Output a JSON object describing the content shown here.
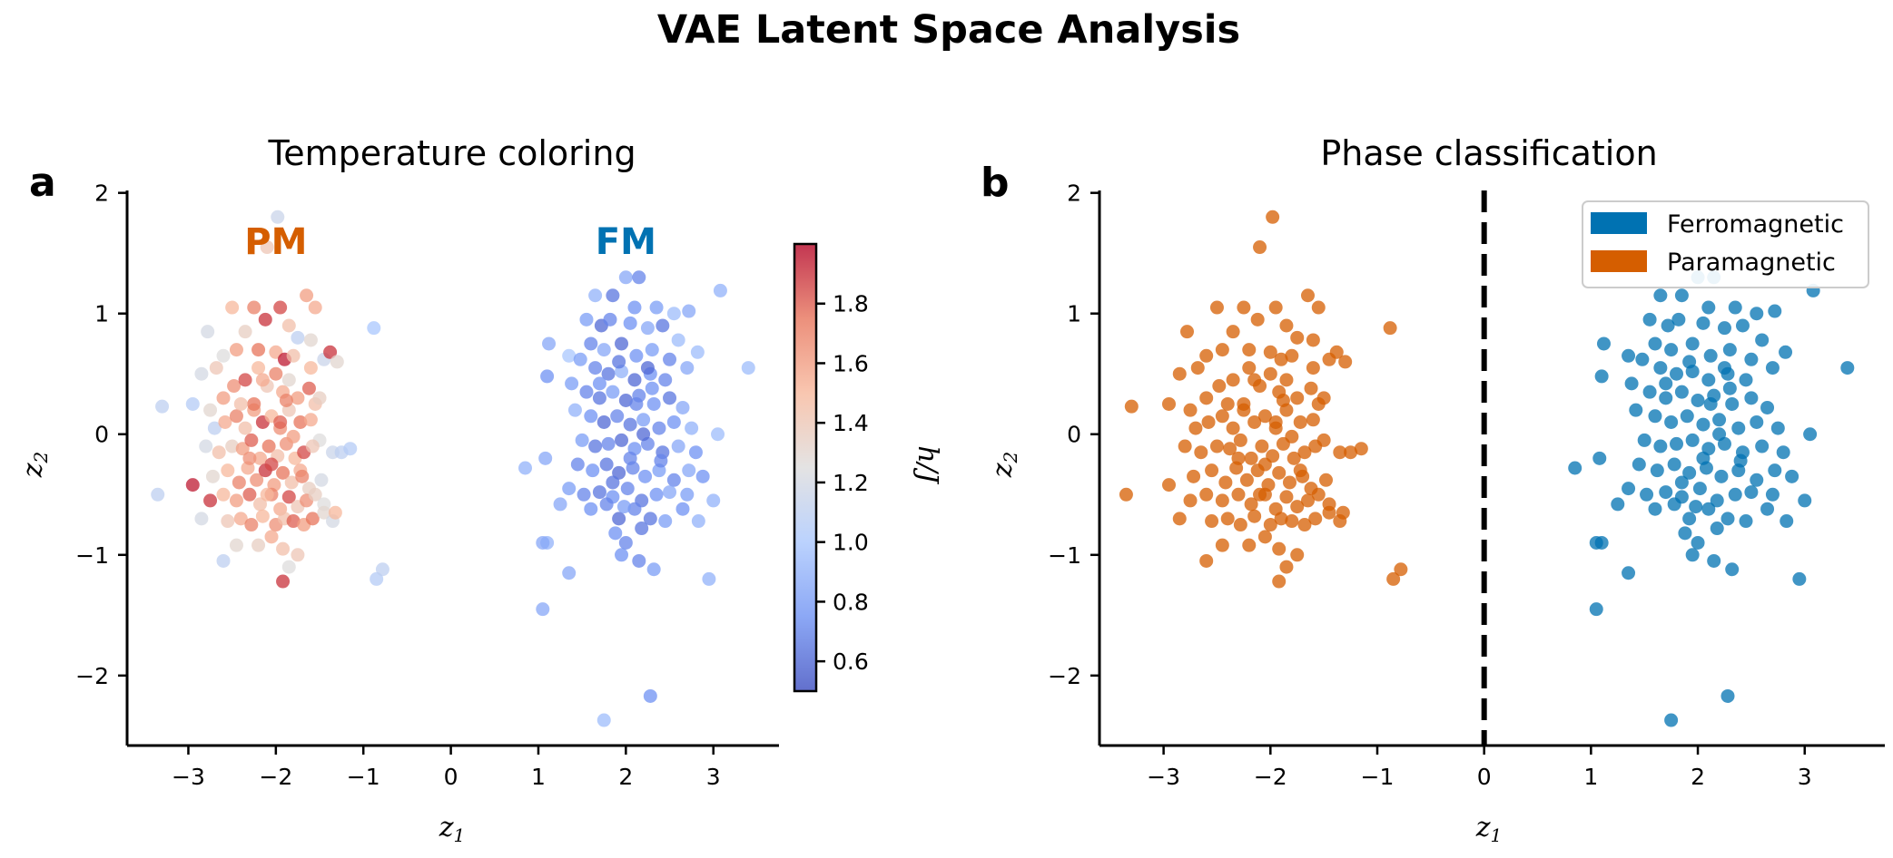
{
  "figure": {
    "title": "VAE Latent Space Analysis"
  },
  "colors": {
    "ferromagnetic": "#0072b2",
    "paramagnetic": "#d55e00",
    "colormap": [
      "#3b4cc0",
      "#6f92f3",
      "#aac7fd",
      "#dddcdc",
      "#f7b89c",
      "#e7745b",
      "#b40426"
    ]
  },
  "chart_data": [
    {
      "id": "a",
      "type": "scatter",
      "panel_label": "a",
      "title": "Temperature coloring",
      "xlabel_main": "z",
      "xlabel_sub": "1",
      "ylabel_main": "z",
      "ylabel_sub": "2",
      "xlim": [
        -3.7,
        3.75
      ],
      "ylim": [
        -2.58,
        2.02
      ],
      "xticks": [
        -3,
        -2,
        -1,
        0,
        1,
        2,
        3
      ],
      "yticks": [
        -2,
        -1,
        0,
        1,
        2
      ],
      "grid": false,
      "annotations": [
        {
          "text": "PM",
          "x": -2.0,
          "y": 1.6,
          "color": "#d55e00"
        },
        {
          "text": "FM",
          "x": 2.0,
          "y": 1.6,
          "color": "#0072b2"
        }
      ],
      "colorbar": {
        "label": "h/J",
        "range": [
          0.5,
          2.0
        ],
        "ticks": [
          0.6,
          0.8,
          1.0,
          1.2,
          1.4,
          1.6,
          1.8
        ]
      },
      "color_encoding": "h/J"
    },
    {
      "id": "b",
      "type": "scatter",
      "panel_label": "b",
      "title": "Phase classification",
      "xlabel_main": "z",
      "xlabel_sub": "1",
      "ylabel_main": "z",
      "ylabel_sub": "2",
      "xlim": [
        -3.6,
        3.75
      ],
      "ylim": [
        -2.58,
        2.02
      ],
      "xticks": [
        -3,
        -2,
        -1,
        0,
        1,
        2,
        3
      ],
      "yticks": [
        -2,
        -1,
        0,
        1,
        2
      ],
      "grid": false,
      "decision_boundary": {
        "x": 0,
        "style": "dashed"
      },
      "legend": {
        "position": "top-right",
        "entries": [
          {
            "label": "Ferromagnetic",
            "color": "#0072b2"
          },
          {
            "label": "Paramagnetic",
            "color": "#d55e00"
          }
        ]
      }
    }
  ],
  "points": {
    "paramagnetic": [
      [
        -1.98,
        1.8,
        1.15
      ],
      [
        -2.1,
        1.55,
        1.4
      ],
      [
        -2.5,
        1.05,
        1.5
      ],
      [
        -2.25,
        1.05,
        1.7
      ],
      [
        -1.95,
        1.05,
        1.85
      ],
      [
        -1.65,
        1.15,
        1.6
      ],
      [
        -1.55,
        1.05,
        1.55
      ],
      [
        -2.78,
        0.85,
        1.2
      ],
      [
        -2.35,
        0.85,
        1.35
      ],
      [
        -2.12,
        0.95,
        1.9
      ],
      [
        -1.85,
        0.9,
        1.45
      ],
      [
        -1.75,
        0.8,
        1.1
      ],
      [
        -1.6,
        0.78,
        1.3
      ],
      [
        -0.88,
        0.88,
        1.0
      ],
      [
        -2.85,
        0.5,
        1.2
      ],
      [
        -2.68,
        0.55,
        1.4
      ],
      [
        -2.6,
        0.65,
        1.25
      ],
      [
        -2.45,
        0.7,
        1.6
      ],
      [
        -2.2,
        0.7,
        1.75
      ],
      [
        -2.0,
        0.68,
        1.55
      ],
      [
        -1.9,
        0.62,
        1.95
      ],
      [
        -1.8,
        0.65,
        1.45
      ],
      [
        -1.6,
        0.55,
        1.5
      ],
      [
        -1.45,
        0.62,
        1.15
      ],
      [
        -1.38,
        0.68,
        1.9
      ],
      [
        -1.3,
        0.6,
        1.3
      ],
      [
        -3.3,
        0.23,
        1.1
      ],
      [
        -2.95,
        0.25,
        1.05
      ],
      [
        -2.75,
        0.2,
        1.3
      ],
      [
        -2.6,
        0.3,
        1.6
      ],
      [
        -2.48,
        0.4,
        1.65
      ],
      [
        -2.35,
        0.45,
        1.85
      ],
      [
        -2.2,
        0.55,
        1.5
      ],
      [
        -2.1,
        0.4,
        1.4
      ],
      [
        -2.0,
        0.5,
        1.7
      ],
      [
        -1.92,
        0.35,
        1.55
      ],
      [
        -1.85,
        0.45,
        1.3
      ],
      [
        -1.75,
        0.3,
        1.6
      ],
      [
        -1.62,
        0.38,
        1.8
      ],
      [
        -1.55,
        0.25,
        1.45
      ],
      [
        -1.5,
        0.3,
        1.35
      ],
      [
        -2.7,
        0.05,
        1.1
      ],
      [
        -2.58,
        0.1,
        1.55
      ],
      [
        -2.45,
        0.15,
        1.7
      ],
      [
        -2.35,
        0.05,
        1.45
      ],
      [
        -2.25,
        0.2,
        1.6
      ],
      [
        -2.15,
        0.1,
        1.9
      ],
      [
        -2.05,
        0.15,
        1.5
      ],
      [
        -1.95,
        0.05,
        1.65
      ],
      [
        -1.85,
        0.2,
        1.4
      ],
      [
        -1.72,
        0.1,
        1.75
      ],
      [
        -1.6,
        0.12,
        1.55
      ],
      [
        -1.5,
        -0.05,
        1.25
      ],
      [
        -1.35,
        -0.15,
        1.15
      ],
      [
        -1.25,
        -0.15,
        1.1
      ],
      [
        -1.15,
        -0.12,
        1.05
      ],
      [
        -2.8,
        -0.1,
        1.2
      ],
      [
        -2.65,
        -0.15,
        1.45
      ],
      [
        -2.5,
        -0.1,
        1.35
      ],
      [
        -2.38,
        -0.12,
        1.6
      ],
      [
        -2.28,
        -0.05,
        1.8
      ],
      [
        -2.18,
        -0.2,
        1.55
      ],
      [
        -2.08,
        -0.1,
        1.75
      ],
      [
        -1.98,
        -0.18,
        1.45
      ],
      [
        -1.88,
        -0.08,
        1.65
      ],
      [
        -1.78,
        -0.2,
        1.5
      ],
      [
        -1.68,
        -0.15,
        1.85
      ],
      [
        -1.58,
        -0.1,
        1.4
      ],
      [
        -2.72,
        -0.35,
        1.3
      ],
      [
        -2.55,
        -0.3,
        1.5
      ],
      [
        -2.42,
        -0.4,
        1.7
      ],
      [
        -2.32,
        -0.28,
        1.55
      ],
      [
        -2.22,
        -0.38,
        1.65
      ],
      [
        -2.12,
        -0.3,
        1.9
      ],
      [
        -2.02,
        -0.42,
        1.6
      ],
      [
        -1.92,
        -0.32,
        1.75
      ],
      [
        -1.82,
        -0.4,
        1.45
      ],
      [
        -1.72,
        -0.3,
        1.55
      ],
      [
        -1.62,
        -0.45,
        1.35
      ],
      [
        -1.48,
        -0.38,
        1.2
      ],
      [
        -3.35,
        -0.5,
        1.1
      ],
      [
        -2.95,
        -0.42,
        1.95
      ],
      [
        -2.6,
        -0.5,
        1.5
      ],
      [
        -2.45,
        -0.55,
        1.6
      ],
      [
        -2.3,
        -0.5,
        1.8
      ],
      [
        -2.18,
        -0.58,
        1.45
      ],
      [
        -2.05,
        -0.5,
        1.7
      ],
      [
        -1.95,
        -0.62,
        1.55
      ],
      [
        -1.85,
        -0.52,
        1.85
      ],
      [
        -1.75,
        -0.6,
        1.4
      ],
      [
        -1.65,
        -0.55,
        1.65
      ],
      [
        -1.55,
        -0.5,
        1.35
      ],
      [
        -1.45,
        -0.58,
        1.25
      ],
      [
        -2.75,
        -0.55,
        1.9
      ],
      [
        -2.85,
        -0.7,
        1.2
      ],
      [
        -2.55,
        -0.72,
        1.4
      ],
      [
        -2.4,
        -0.7,
        1.55
      ],
      [
        -2.28,
        -0.75,
        1.7
      ],
      [
        -2.15,
        -0.68,
        1.5
      ],
      [
        -2.0,
        -0.75,
        1.65
      ],
      [
        -1.9,
        -0.7,
        1.45
      ],
      [
        -1.8,
        -0.72,
        1.8
      ],
      [
        -1.68,
        -0.75,
        1.6
      ],
      [
        -1.58,
        -0.7,
        1.75
      ],
      [
        -1.45,
        -0.65,
        1.3
      ],
      [
        -1.35,
        -0.72,
        1.2
      ],
      [
        -1.32,
        -0.65,
        1.5
      ],
      [
        -2.45,
        -0.92,
        1.3
      ],
      [
        -2.2,
        -0.92,
        1.35
      ],
      [
        -2.05,
        -0.85,
        1.55
      ],
      [
        -1.92,
        -0.95,
        1.45
      ],
      [
        -1.75,
        -1.0,
        1.4
      ],
      [
        -2.6,
        -1.05,
        1.1
      ],
      [
        -1.85,
        -1.1,
        1.25
      ],
      [
        -1.92,
        -1.22,
        1.9
      ],
      [
        -0.85,
        -1.2,
        1.05
      ],
      [
        -0.78,
        -1.12,
        1.1
      ],
      [
        -2.25,
        0.25,
        1.75
      ],
      [
        -2.05,
        -0.25,
        1.85
      ],
      [
        -1.88,
        0.28,
        1.7
      ],
      [
        -2.3,
        -0.2,
        1.65
      ],
      [
        -1.95,
        0.1,
        1.8
      ],
      [
        -2.15,
        0.45,
        1.55
      ],
      [
        -1.7,
        -0.35,
        1.7
      ],
      [
        -2.4,
        0.25,
        1.45
      ],
      [
        -1.8,
        -0.02,
        1.6
      ],
      [
        -2.1,
        -0.5,
        1.5
      ]
    ],
    "ferromagnetic": [
      [
        2.0,
        1.3,
        0.85
      ],
      [
        2.15,
        1.3,
        0.7
      ],
      [
        1.65,
        1.15,
        0.9
      ],
      [
        2.1,
        1.05,
        0.75
      ],
      [
        2.35,
        1.05,
        0.8
      ],
      [
        2.55,
        1.0,
        0.95
      ],
      [
        2.72,
        1.02,
        0.85
      ],
      [
        3.08,
        1.19,
        0.9
      ],
      [
        1.85,
        1.15,
        0.65
      ],
      [
        1.55,
        0.95,
        0.8
      ],
      [
        1.72,
        0.9,
        0.6
      ],
      [
        1.82,
        0.95,
        0.7
      ],
      [
        2.05,
        0.92,
        0.75
      ],
      [
        2.25,
        0.88,
        0.85
      ],
      [
        2.42,
        0.9,
        0.65
      ],
      [
        2.6,
        0.78,
        0.95
      ],
      [
        1.6,
        0.75,
        0.7
      ],
      [
        1.75,
        0.7,
        0.85
      ],
      [
        1.95,
        0.75,
        0.6
      ],
      [
        2.12,
        0.65,
        0.75
      ],
      [
        2.3,
        0.7,
        0.8
      ],
      [
        2.5,
        0.62,
        0.7
      ],
      [
        2.82,
        0.68,
        0.95
      ],
      [
        1.12,
        0.75,
        0.85
      ],
      [
        1.35,
        0.65,
        1.0
      ],
      [
        1.48,
        0.62,
        0.8
      ],
      [
        1.65,
        0.55,
        0.7
      ],
      [
        1.8,
        0.5,
        0.65
      ],
      [
        1.95,
        0.52,
        0.9
      ],
      [
        2.1,
        0.45,
        0.6
      ],
      [
        2.28,
        0.5,
        0.75
      ],
      [
        2.45,
        0.45,
        0.7
      ],
      [
        2.7,
        0.55,
        0.85
      ],
      [
        3.4,
        0.55,
        0.95
      ],
      [
        1.1,
        0.48,
        0.75
      ],
      [
        1.38,
        0.42,
        0.8
      ],
      [
        1.55,
        0.35,
        0.7
      ],
      [
        1.7,
        0.3,
        0.65
      ],
      [
        1.85,
        0.35,
        0.8
      ],
      [
        2.0,
        0.28,
        0.6
      ],
      [
        2.15,
        0.32,
        0.7
      ],
      [
        2.32,
        0.25,
        0.75
      ],
      [
        2.5,
        0.3,
        0.65
      ],
      [
        2.65,
        0.22,
        0.85
      ],
      [
        1.42,
        0.2,
        0.9
      ],
      [
        1.6,
        0.15,
        0.75
      ],
      [
        1.75,
        0.1,
        0.6
      ],
      [
        1.9,
        0.15,
        0.7
      ],
      [
        2.05,
        0.08,
        0.65
      ],
      [
        2.2,
        0.12,
        0.8
      ],
      [
        2.38,
        0.05,
        0.7
      ],
      [
        2.55,
        0.1,
        0.75
      ],
      [
        2.75,
        0.05,
        0.9
      ],
      [
        3.05,
        0.0,
        0.95
      ],
      [
        1.5,
        -0.05,
        0.8
      ],
      [
        1.65,
        -0.1,
        0.65
      ],
      [
        1.8,
        -0.08,
        0.7
      ],
      [
        1.95,
        -0.05,
        0.6
      ],
      [
        2.1,
        -0.12,
        0.75
      ],
      [
        2.25,
        -0.08,
        0.7
      ],
      [
        2.42,
        -0.15,
        0.65
      ],
      [
        2.6,
        -0.1,
        0.85
      ],
      [
        2.8,
        -0.15,
        0.75
      ],
      [
        0.85,
        -0.28,
        0.9
      ],
      [
        1.08,
        -0.2,
        0.85
      ],
      [
        1.45,
        -0.25,
        0.7
      ],
      [
        1.62,
        -0.3,
        0.75
      ],
      [
        1.78,
        -0.25,
        0.65
      ],
      [
        1.92,
        -0.32,
        0.6
      ],
      [
        2.08,
        -0.28,
        0.7
      ],
      [
        2.22,
        -0.35,
        0.75
      ],
      [
        2.38,
        -0.3,
        0.8
      ],
      [
        2.55,
        -0.38,
        0.7
      ],
      [
        2.72,
        -0.3,
        0.85
      ],
      [
        2.88,
        -0.35,
        0.75
      ],
      [
        1.35,
        -0.45,
        0.8
      ],
      [
        1.52,
        -0.5,
        0.7
      ],
      [
        1.7,
        -0.48,
        0.65
      ],
      [
        1.85,
        -0.52,
        0.75
      ],
      [
        2.02,
        -0.45,
        0.7
      ],
      [
        2.18,
        -0.55,
        0.65
      ],
      [
        2.35,
        -0.5,
        0.75
      ],
      [
        2.5,
        -0.48,
        0.85
      ],
      [
        2.7,
        -0.5,
        0.8
      ],
      [
        3.0,
        -0.55,
        0.9
      ],
      [
        1.25,
        -0.58,
        0.85
      ],
      [
        1.6,
        -0.62,
        0.75
      ],
      [
        1.78,
        -0.58,
        0.7
      ],
      [
        1.92,
        -0.7,
        0.6
      ],
      [
        2.1,
        -0.62,
        0.7
      ],
      [
        2.28,
        -0.7,
        0.65
      ],
      [
        2.45,
        -0.72,
        0.8
      ],
      [
        2.65,
        -0.62,
        0.75
      ],
      [
        2.83,
        -0.72,
        0.9
      ],
      [
        1.88,
        -0.82,
        0.75
      ],
      [
        2.0,
        -0.9,
        0.7
      ],
      [
        2.18,
        -0.78,
        0.65
      ],
      [
        1.1,
        -0.9,
        0.9
      ],
      [
        1.05,
        -0.9,
        0.85
      ],
      [
        1.95,
        -1.0,
        0.75
      ],
      [
        2.15,
        -1.05,
        0.7
      ],
      [
        1.35,
        -1.15,
        0.85
      ],
      [
        2.32,
        -1.12,
        0.8
      ],
      [
        2.95,
        -1.2,
        0.9
      ],
      [
        1.05,
        -1.45,
        0.85
      ],
      [
        2.28,
        -2.17,
        0.75
      ],
      [
        1.75,
        -2.37,
        0.95
      ],
      [
        2.25,
        0.55,
        0.6
      ],
      [
        1.92,
        0.6,
        0.65
      ],
      [
        2.05,
        -0.2,
        0.7
      ],
      [
        2.2,
        0.0,
        0.6
      ],
      [
        1.7,
        0.42,
        0.75
      ],
      [
        2.4,
        -0.22,
        0.7
      ],
      [
        1.85,
        -0.4,
        0.65
      ],
      [
        2.12,
        0.25,
        0.7
      ],
      [
        1.98,
        -0.6,
        0.8
      ],
      [
        2.3,
        0.38,
        0.75
      ]
    ]
  }
}
